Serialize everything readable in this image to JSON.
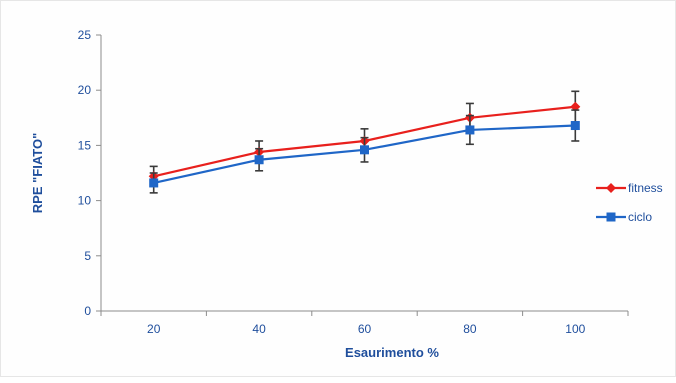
{
  "chart_data": {
    "type": "line",
    "title": "",
    "xlabel": "Esaurimento %",
    "ylabel": "RPE \"FIATO\"",
    "categories": [
      "20",
      "40",
      "60",
      "80",
      "100"
    ],
    "ylim": [
      0,
      25
    ],
    "yticks": [
      0,
      5,
      10,
      15,
      20,
      25
    ],
    "grid": false,
    "legend_position": "right",
    "series": [
      {
        "name": "fitness",
        "color": "#e8201d",
        "marker": "diamond",
        "values": [
          12.2,
          14.4,
          15.4,
          17.5,
          18.5
        ],
        "error": [
          0.9,
          1.0,
          1.1,
          1.3,
          1.4
        ]
      },
      {
        "name": "ciclo",
        "color": "#1f66c7",
        "marker": "square",
        "values": [
          11.6,
          13.7,
          14.6,
          16.4,
          16.8
        ],
        "error": [
          0.9,
          1.0,
          1.1,
          1.3,
          1.4
        ]
      }
    ]
  }
}
